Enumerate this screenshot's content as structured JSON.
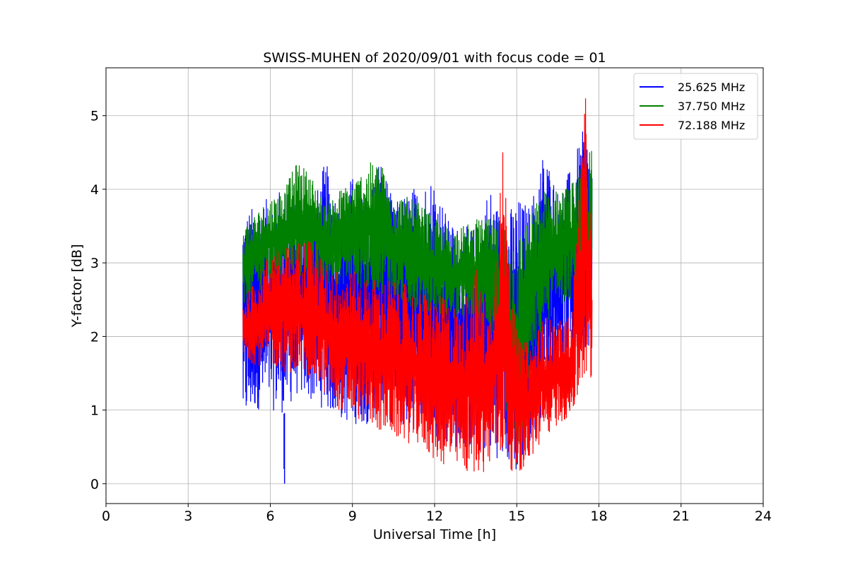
{
  "chart_data": {
    "type": "line",
    "title": "SWISS-MUHEN of 2020/09/01 with focus code = 01",
    "xlabel": "Universal Time [h]",
    "ylabel": "Y-factor [dB]",
    "xlim": [
      0,
      24
    ],
    "ylim": [
      -0.27,
      5.65
    ],
    "xticks": [
      0,
      3,
      6,
      9,
      12,
      15,
      18,
      21,
      24
    ],
    "yticks": [
      0,
      1,
      2,
      3,
      4,
      5
    ],
    "grid": true,
    "legend_position": "top-right",
    "series": [
      {
        "name": "25.625 MHz",
        "color": "#0000ff",
        "x": [
          5.0,
          5.5,
          6.0,
          6.5,
          7.0,
          7.5,
          8.0,
          8.5,
          9.0,
          9.5,
          10.0,
          10.5,
          11.0,
          11.5,
          12.0,
          12.5,
          13.0,
          13.5,
          14.0,
          14.5,
          15.0,
          15.5,
          16.0,
          16.5,
          17.0,
          17.5,
          17.75
        ],
        "low": [
          0.75,
          1.0,
          1.0,
          0.95,
          1.2,
          1.1,
          1.0,
          0.85,
          0.8,
          0.8,
          0.9,
          0.8,
          0.7,
          0.7,
          0.6,
          0.5,
          0.45,
          0.4,
          0.4,
          0.3,
          0.1,
          0.5,
          1.0,
          1.6,
          1.7,
          1.8,
          1.9
        ],
        "high": [
          3.7,
          3.8,
          3.9,
          4.05,
          3.9,
          3.7,
          4.4,
          3.9,
          4.2,
          3.8,
          4.55,
          3.8,
          4.0,
          4.1,
          4.25,
          3.6,
          3.5,
          3.5,
          4.1,
          3.6,
          3.9,
          3.8,
          4.6,
          4.0,
          4.3,
          4.9,
          4.4
        ],
        "spikes": [
          [
            6.52,
            0.0
          ],
          [
            6.5,
            0.2
          ]
        ]
      },
      {
        "name": "37.750 MHz",
        "color": "#008000",
        "x": [
          5.0,
          5.5,
          6.0,
          6.5,
          7.0,
          7.5,
          8.0,
          8.5,
          9.0,
          9.5,
          10.0,
          10.5,
          11.0,
          11.5,
          12.0,
          12.5,
          13.0,
          13.5,
          14.0,
          14.5,
          15.0,
          15.5,
          16.0,
          16.5,
          17.0,
          17.5,
          17.75
        ],
        "low": [
          2.3,
          2.6,
          2.7,
          2.8,
          2.8,
          2.7,
          2.7,
          2.7,
          2.7,
          2.6,
          2.6,
          2.5,
          2.4,
          2.3,
          2.3,
          2.2,
          2.2,
          2.1,
          2.1,
          1.2,
          0.1,
          1.6,
          2.1,
          2.4,
          2.5,
          2.4,
          2.5
        ],
        "high": [
          3.5,
          3.7,
          3.9,
          4.0,
          4.4,
          4.2,
          3.8,
          4.0,
          4.1,
          4.35,
          4.4,
          4.0,
          3.9,
          3.8,
          3.6,
          3.5,
          3.5,
          3.6,
          3.6,
          3.6,
          3.4,
          3.7,
          4.0,
          4.0,
          4.1,
          4.4,
          4.6
        ]
      },
      {
        "name": "72.188 MHz",
        "color": "#ff0000",
        "x": [
          5.0,
          5.5,
          6.0,
          6.5,
          7.0,
          7.5,
          8.0,
          8.5,
          9.0,
          9.5,
          10.0,
          10.5,
          11.0,
          11.5,
          12.0,
          12.5,
          13.0,
          13.5,
          14.0,
          14.5,
          15.0,
          15.5,
          16.0,
          16.5,
          17.0,
          17.5,
          17.75
        ],
        "low": [
          1.7,
          1.6,
          1.6,
          1.5,
          1.5,
          1.4,
          1.2,
          1.0,
          0.9,
          0.8,
          0.7,
          0.6,
          0.55,
          0.5,
          0.3,
          0.2,
          0.15,
          0.1,
          0.2,
          0.3,
          0.1,
          0.3,
          0.6,
          0.8,
          0.9,
          1.3,
          1.3
        ],
        "high": [
          2.5,
          2.8,
          3.2,
          3.2,
          3.3,
          3.4,
          3.0,
          2.9,
          2.9,
          2.8,
          2.8,
          2.8,
          2.7,
          2.6,
          2.6,
          2.5,
          2.4,
          3.0,
          2.3,
          4.6,
          2.0,
          1.9,
          2.3,
          2.2,
          2.3,
          5.35,
          3.2
        ]
      }
    ]
  }
}
